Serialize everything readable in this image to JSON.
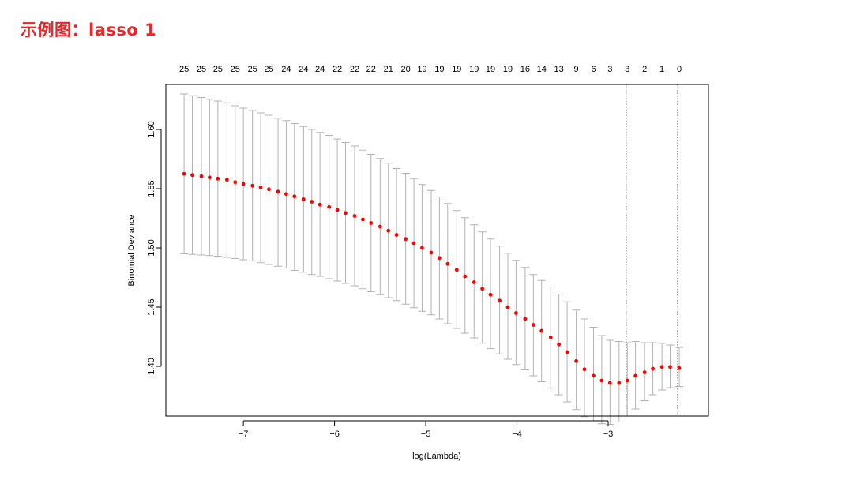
{
  "slide": {
    "title": "示例图：lasso 1"
  },
  "chart_data": {
    "type": "scatter",
    "xlabel": "log(Lambda)",
    "ylabel": "Binomial Deviance",
    "xlim": [
      -7.85,
      -1.9
    ],
    "ylim": [
      1.358,
      1.638
    ],
    "x_ticks": [
      -7,
      -6,
      -5,
      -4,
      -3
    ],
    "y_ticks": [
      1.4,
      1.45,
      1.5,
      1.55,
      1.6
    ],
    "y_tick_labels": [
      "1.40",
      "1.45",
      "1.50",
      "1.55",
      "1.60"
    ],
    "top_axis": {
      "ticks": [
        -7.65,
        -7.46,
        -7.28,
        -7.09,
        -6.9,
        -6.72,
        -6.53,
        -6.34,
        -6.16,
        -5.97,
        -5.78,
        -5.6,
        -5.41,
        -5.22,
        -5.04,
        -4.85,
        -4.66,
        -4.47,
        -4.29,
        -4.1,
        -3.91,
        -3.73,
        -3.54,
        -3.35,
        -3.16,
        -2.98,
        -2.79,
        -2.6,
        -2.41,
        -2.22
      ],
      "labels": [
        "25",
        "25",
        "25",
        "25",
        "25",
        "25",
        "24",
        "24",
        "24",
        "22",
        "22",
        "22",
        "21",
        "20",
        "19",
        "19",
        "19",
        "19",
        "19",
        "19",
        "16",
        "14",
        "13",
        "9",
        "6",
        "3",
        "3",
        "2",
        "1",
        "0"
      ]
    },
    "vlines": [
      -2.8,
      -2.24
    ],
    "series": [
      {
        "x": [
          -7.65,
          -7.56,
          -7.46,
          -7.37,
          -7.28,
          -7.18,
          -7.09,
          -7.0,
          -6.9,
          -6.81,
          -6.72,
          -6.62,
          -6.53,
          -6.44,
          -6.34,
          -6.25,
          -6.16,
          -6.06,
          -5.97,
          -5.88,
          -5.78,
          -5.69,
          -5.6,
          -5.5,
          -5.41,
          -5.32,
          -5.22,
          -5.13,
          -5.04,
          -4.94,
          -4.85,
          -4.76,
          -4.66,
          -4.57,
          -4.47,
          -4.38,
          -4.29,
          -4.19,
          -4.1,
          -4.01,
          -3.91,
          -3.82,
          -3.73,
          -3.63,
          -3.54,
          -3.45,
          -3.35,
          -3.26,
          -3.16,
          -3.07,
          -2.98,
          -2.88,
          -2.79,
          -2.7,
          -2.6,
          -2.51,
          -2.41,
          -2.32,
          -2.22
        ],
        "y": [
          1.5625,
          1.5615,
          1.5605,
          1.5595,
          1.5585,
          1.5575,
          1.5555,
          1.554,
          1.5525,
          1.551,
          1.5495,
          1.5475,
          1.5455,
          1.5435,
          1.541,
          1.539,
          1.5365,
          1.5345,
          1.532,
          1.5295,
          1.527,
          1.524,
          1.521,
          1.518,
          1.5145,
          1.511,
          1.5075,
          1.504,
          1.5,
          1.496,
          1.4915,
          1.4865,
          1.4815,
          1.476,
          1.471,
          1.4655,
          1.4605,
          1.4555,
          1.45,
          1.445,
          1.44,
          1.435,
          1.43,
          1.4245,
          1.4185,
          1.412,
          1.4045,
          1.3975,
          1.392,
          1.388,
          1.386,
          1.386,
          1.388,
          1.392,
          1.395,
          1.398,
          1.3995,
          1.3995,
          1.3985
        ],
        "lower": [
          1.495,
          1.4945,
          1.494,
          1.4935,
          1.493,
          1.492,
          1.491,
          1.49,
          1.489,
          1.4875,
          1.486,
          1.4845,
          1.483,
          1.481,
          1.4795,
          1.4775,
          1.476,
          1.474,
          1.472,
          1.47,
          1.468,
          1.4655,
          1.463,
          1.4605,
          1.458,
          1.4555,
          1.4525,
          1.4495,
          1.4465,
          1.4435,
          1.44,
          1.436,
          1.432,
          1.428,
          1.424,
          1.4195,
          1.415,
          1.4105,
          1.406,
          1.4015,
          1.397,
          1.392,
          1.387,
          1.3815,
          1.376,
          1.37,
          1.3635,
          1.3575,
          1.354,
          1.3515,
          1.351,
          1.353,
          1.358,
          1.364,
          1.371,
          1.376,
          1.38,
          1.382,
          1.383
        ],
        "upper": [
          1.63,
          1.6285,
          1.627,
          1.6255,
          1.624,
          1.6225,
          1.62,
          1.618,
          1.616,
          1.614,
          1.612,
          1.6095,
          1.6075,
          1.605,
          1.6025,
          1.6,
          1.5975,
          1.595,
          1.592,
          1.589,
          1.586,
          1.5825,
          1.579,
          1.5755,
          1.5715,
          1.567,
          1.563,
          1.5585,
          1.5535,
          1.5485,
          1.543,
          1.5375,
          1.5315,
          1.5255,
          1.5195,
          1.5135,
          1.5075,
          1.5015,
          1.4955,
          1.4895,
          1.4835,
          1.4775,
          1.4725,
          1.467,
          1.461,
          1.4545,
          1.4475,
          1.44,
          1.433,
          1.426,
          1.422,
          1.421,
          1.42,
          1.421,
          1.42,
          1.42,
          1.4195,
          1.418,
          1.416
        ]
      }
    ],
    "colors": {
      "points": "#ff0000",
      "error_bars": "#b3b3b3",
      "vline": "#888888",
      "axis": "#000000"
    }
  }
}
